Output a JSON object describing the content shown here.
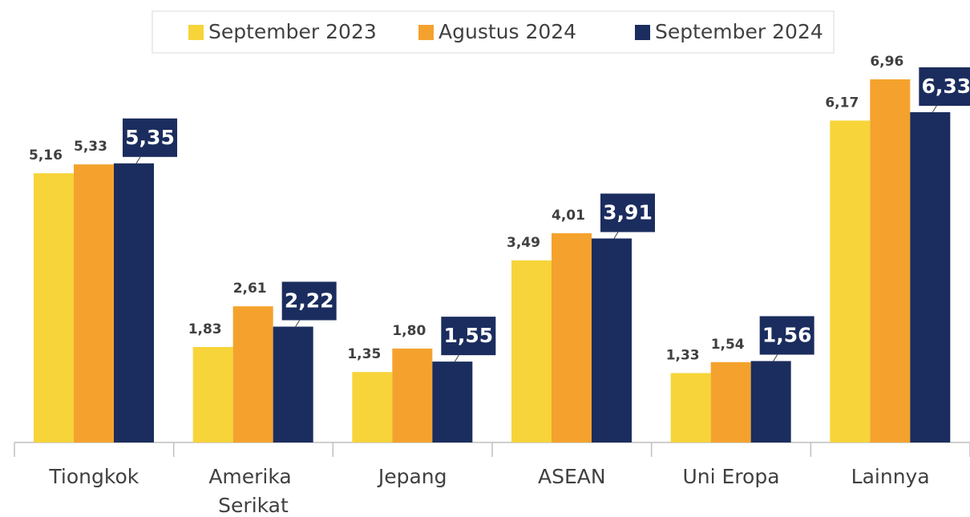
{
  "chart_data": {
    "type": "bar",
    "categories": [
      "Tiongkok",
      "Amerika Serikat",
      "Jepang",
      "ASEAN",
      "Uni Eropa",
      "Lainnya"
    ],
    "series": [
      {
        "name": "September 2023",
        "color": "#f7d43a",
        "values": [
          5.16,
          1.83,
          1.35,
          3.49,
          1.33,
          6.17
        ],
        "value_labels": [
          "5,16",
          "1,83",
          "1,35",
          "3,49",
          "1,33",
          "6,17"
        ]
      },
      {
        "name": "Agustus 2024",
        "color": "#f4a22d",
        "values": [
          5.33,
          2.61,
          1.8,
          4.01,
          1.54,
          6.96
        ],
        "value_labels": [
          "5,33",
          "2,61",
          "1,80",
          "4,01",
          "1,54",
          "6,96"
        ]
      },
      {
        "name": "September 2024",
        "color": "#1b2d5e",
        "values": [
          5.35,
          2.22,
          1.55,
          3.91,
          1.56,
          6.33
        ],
        "value_labels": [
          "5,35",
          "2,22",
          "1,55",
          "3,91",
          "1,56",
          "6,33"
        ]
      }
    ],
    "legend": "top"
  }
}
